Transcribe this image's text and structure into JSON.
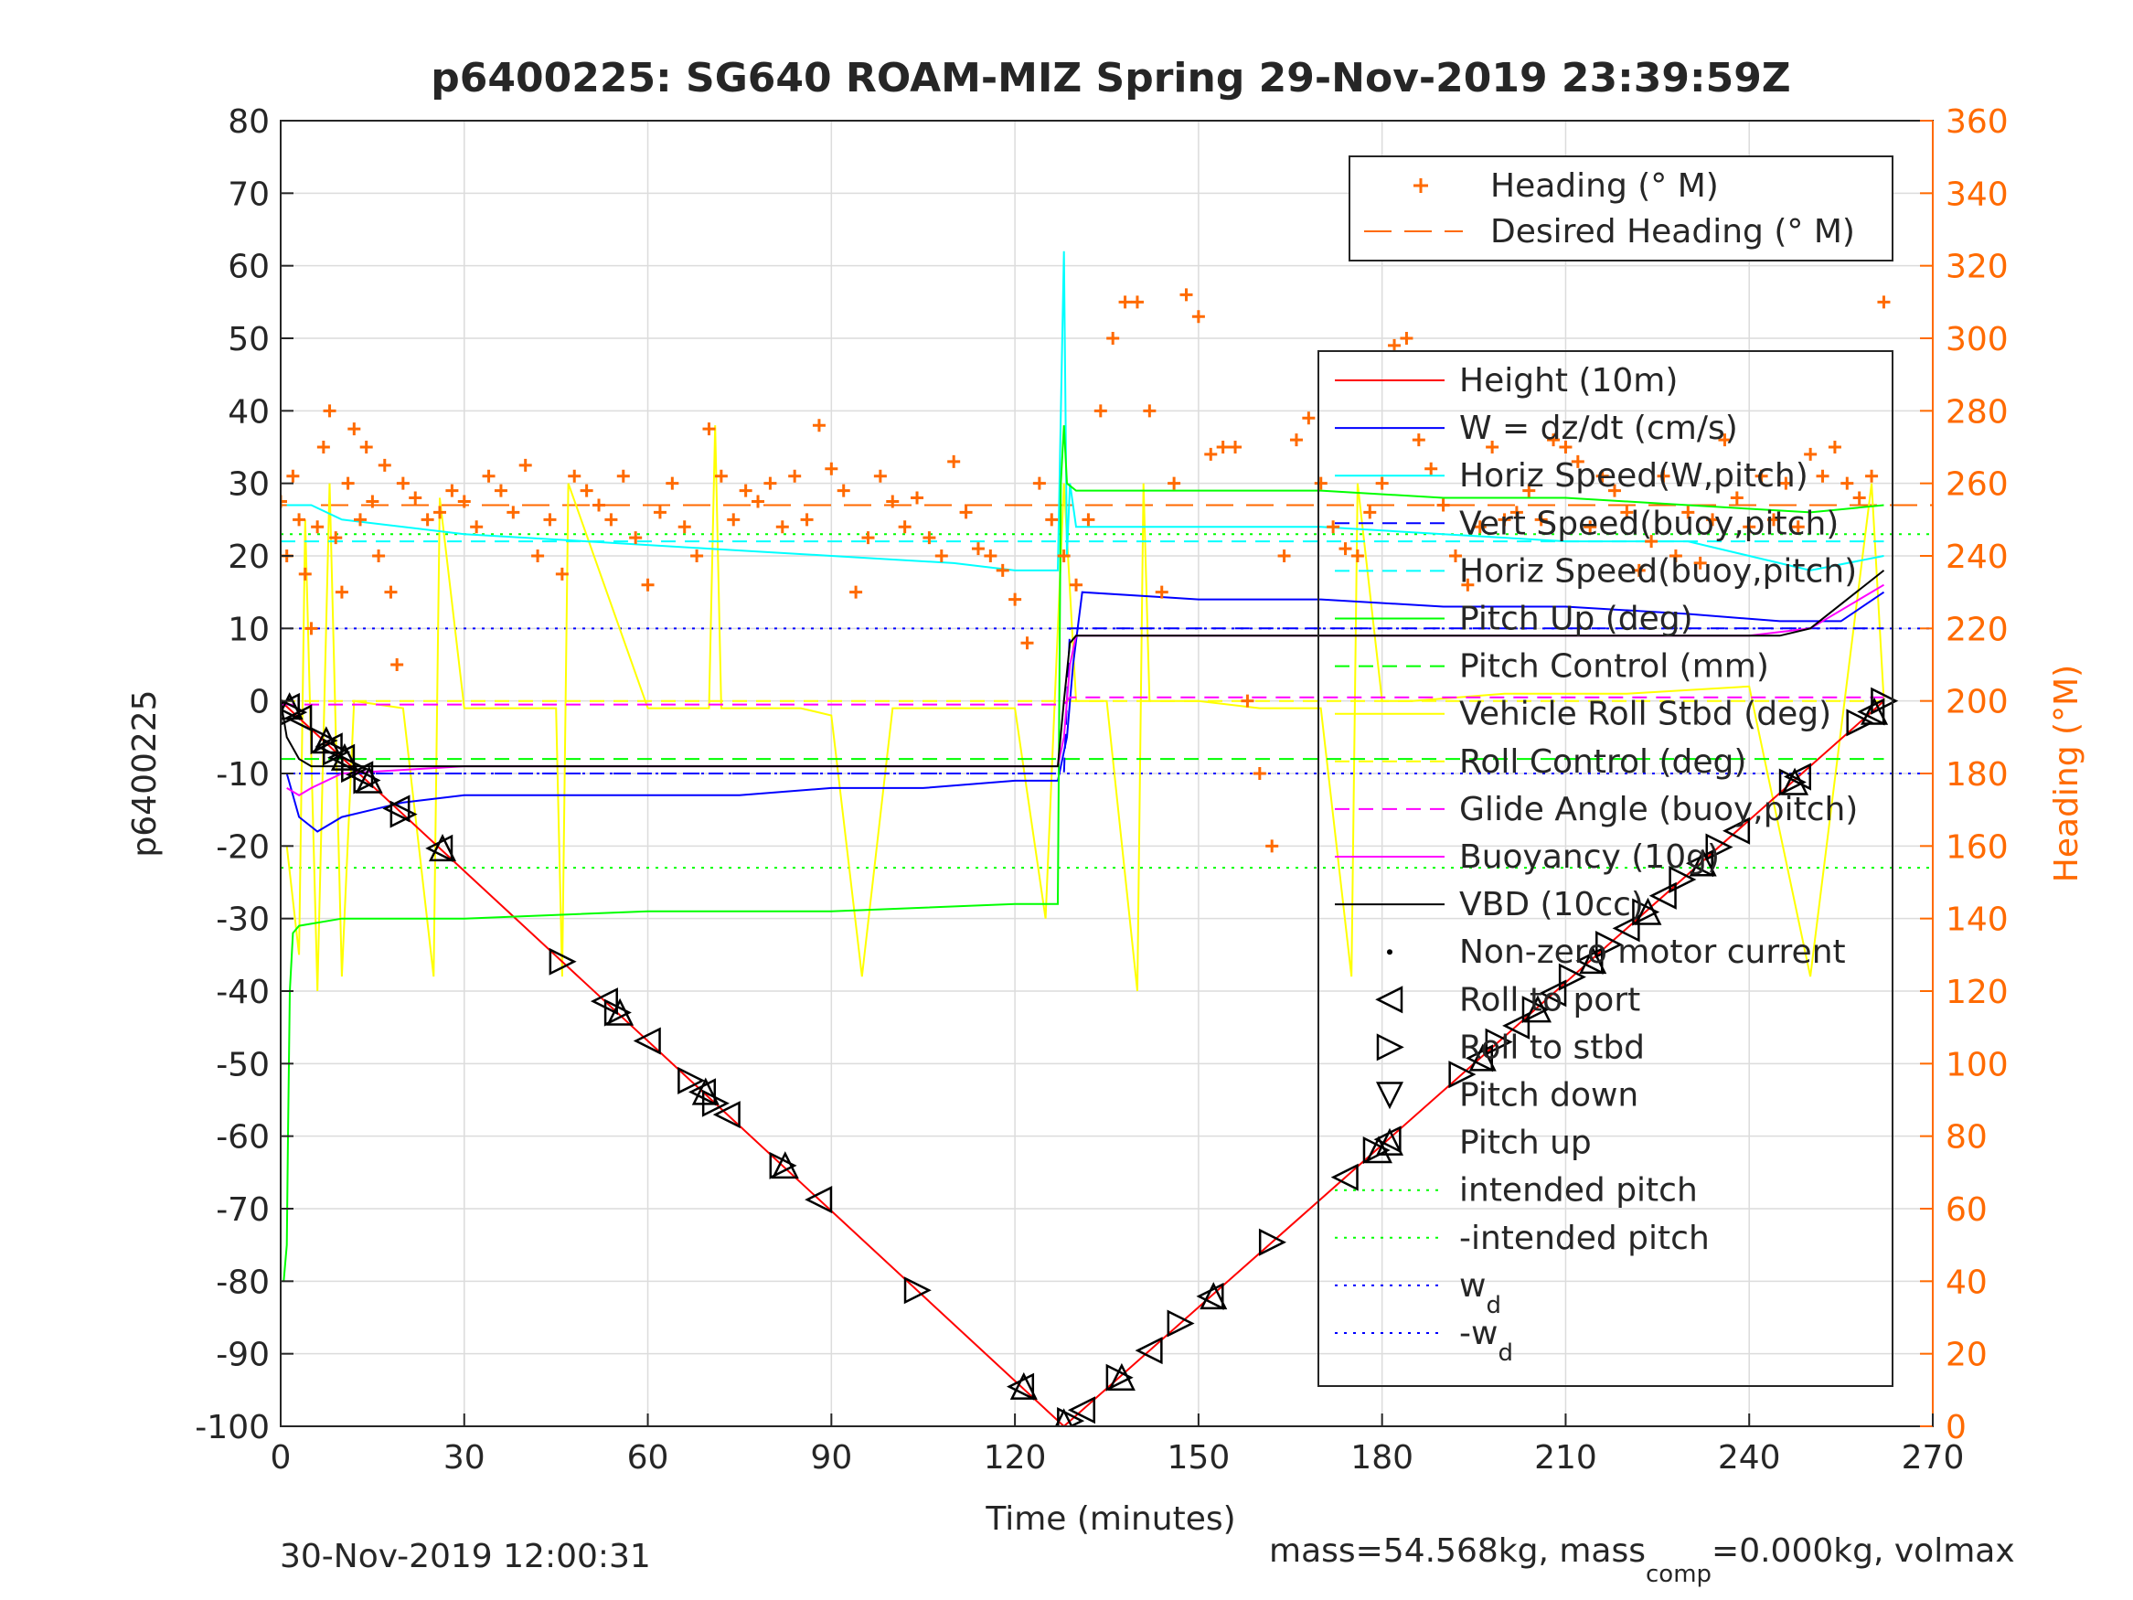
{
  "chart_data": {
    "type": "line",
    "title": "p6400225: SG640 ROAM-MIZ Spring 29-Nov-2019 23:39:59Z",
    "xlabel": "Time (minutes)",
    "ylabel": "p6400225",
    "ylabel_right": "Heading (°M)",
    "xlim": [
      0,
      270
    ],
    "ylim": [
      -100,
      80
    ],
    "ylim_right": [
      0,
      360
    ],
    "xticks": [
      "0",
      "30",
      "60",
      "90",
      "120",
      "150",
      "180",
      "210",
      "240",
      "270"
    ],
    "yticks": [
      "80",
      "70",
      "60",
      "50",
      "40",
      "30",
      "20",
      "10",
      "0",
      "-10",
      "-20",
      "-30",
      "-40",
      "-50",
      "-60",
      "-70",
      "-80",
      "-90",
      "-100"
    ],
    "yticks_right": [
      "360",
      "340",
      "320",
      "300",
      "280",
      "260",
      "240",
      "220",
      "200",
      "180",
      "160",
      "140",
      "120",
      "100",
      "80",
      "60",
      "40",
      "20",
      "0"
    ],
    "grid": true,
    "footer_left": "30-Nov-2019 12:00:31",
    "footer_right": {
      "a": "mass=54.568kg, mass",
      "sub": "comp",
      "b": "=0.000kg, volmax"
    },
    "legend_heading": [
      {
        "label": "Heading (° M)",
        "color": "#ff6a00",
        "style": "plus"
      },
      {
        "label": "Desired Heading (° M)",
        "color": "#ff6a00",
        "style": "dash"
      }
    ],
    "legend_main": [
      {
        "label": "Height (10m)",
        "color": "#ff0000",
        "style": "solid"
      },
      {
        "label": "W = dz/dt (cm/s)",
        "color": "#0000ff",
        "style": "solid"
      },
      {
        "label": "Horiz Speed(W,pitch)",
        "color": "#00ffff",
        "style": "solid"
      },
      {
        "label": "Vert Speed(buoy,pitch)",
        "color": "#0000ff",
        "style": "dash"
      },
      {
        "label": "Horiz Speed(buoy,pitch)",
        "color": "#00ffff",
        "style": "dash"
      },
      {
        "label": "Pitch Up (deg)",
        "color": "#00ff00",
        "style": "solid"
      },
      {
        "label": "Pitch Control (mm)",
        "color": "#00ff00",
        "style": "dash"
      },
      {
        "label": "Vehicle Roll Stbd (deg)",
        "color": "#ffff00",
        "style": "solid"
      },
      {
        "label": "Roll Control (deg)",
        "color": "#ffff00",
        "style": "dash"
      },
      {
        "label": "Glide Angle (buoy,pitch)",
        "color": "#ff00ff",
        "style": "dash"
      },
      {
        "label": "Buoyancy (10g)",
        "color": "#ff00ff",
        "style": "solid"
      },
      {
        "label": "VBD (10cc)",
        "color": "#000000",
        "style": "solid"
      },
      {
        "label": "Non-zero motor current",
        "color": "#000000",
        "style": "dot"
      },
      {
        "label": "Roll to port",
        "color": "#000000",
        "style": "tri-left"
      },
      {
        "label": "Roll to stbd",
        "color": "#000000",
        "style": "tri-right"
      },
      {
        "label": "Pitch down",
        "color": "#000000",
        "style": "tri-down"
      },
      {
        "label": "Pitch up",
        "color": "#000000",
        "style": "tri-up"
      },
      {
        "label": "intended pitch",
        "color": "#00ff00",
        "style": "dotted"
      },
      {
        "label": "-intended pitch",
        "color": "#00ff00",
        "style": "dotted"
      },
      {
        "label": "w",
        "sub": "d",
        "color": "#0000ff",
        "style": "dotted"
      },
      {
        "label": "-w",
        "sub": "d",
        "color": "#0000ff",
        "style": "dotted"
      }
    ],
    "series": [
      {
        "name": "Height (10m)",
        "color": "#ff0000",
        "x": [
          0,
          128,
          262
        ],
        "y": [
          0,
          -100,
          0
        ]
      },
      {
        "name": "W = dz/dt (cm/s)",
        "color": "#0000ff",
        "x": [
          1,
          3,
          6,
          10,
          20,
          30,
          45,
          60,
          75,
          90,
          105,
          120,
          127,
          128.5,
          129.5,
          131,
          150,
          170,
          190,
          210,
          230,
          245,
          255,
          262
        ],
        "y": [
          -10,
          -16,
          -18,
          -16,
          -14,
          -13,
          -13,
          -13,
          -13,
          -12,
          -12,
          -11,
          -11,
          -5,
          5,
          15,
          14,
          14,
          13,
          13,
          12,
          11,
          11,
          15
        ]
      },
      {
        "name": "Horiz Speed(W,pitch)",
        "color": "#00ffff",
        "x": [
          1,
          5,
          10,
          20,
          30,
          50,
          70,
          90,
          110,
          120,
          127,
          128,
          128.5,
          129,
          130,
          150,
          170,
          190,
          210,
          230,
          250,
          262
        ],
        "y": [
          27,
          27,
          25,
          24,
          23,
          22,
          21,
          20,
          19,
          18,
          18,
          62,
          20,
          30,
          24,
          24,
          24,
          23,
          22,
          22,
          18,
          20
        ]
      },
      {
        "name": "Vert Speed(buoy,pitch)",
        "color": "#0000ff",
        "dash": "16,10",
        "x": [
          0,
          128,
          129,
          262
        ],
        "y": [
          -10,
          -10,
          10,
          10
        ]
      },
      {
        "name": "Horiz Speed(buoy,pitch)",
        "color": "#00ffff",
        "dash": "16,10",
        "x": [
          0,
          128,
          129,
          262
        ],
        "y": [
          22,
          22,
          22,
          22
        ]
      },
      {
        "name": "Pitch Up (deg)",
        "color": "#00ff00",
        "x": [
          0.5,
          1,
          1.2,
          1.5,
          2,
          3,
          10,
          30,
          60,
          90,
          120,
          127,
          127.5,
          128,
          128.5,
          130,
          150,
          170,
          190,
          210,
          230,
          250,
          262
        ],
        "y": [
          -80,
          -75,
          -60,
          -40,
          -32,
          -31,
          -30,
          -30,
          -29,
          -29,
          -28,
          -28,
          30,
          38,
          30,
          29,
          29,
          29,
          28,
          28,
          27,
          26,
          27
        ]
      },
      {
        "name": "Pitch Control (mm)",
        "color": "#00ff00",
        "dash": "16,10",
        "x": [
          0,
          128,
          262
        ],
        "y": [
          -8,
          -8,
          -8
        ]
      },
      {
        "name": "Vehicle Roll Stbd (deg)",
        "color": "#ffff00",
        "x": [
          1,
          3,
          4,
          6,
          8,
          10,
          12,
          20,
          25,
          26,
          30,
          45,
          46,
          47,
          60,
          70,
          71,
          72,
          85,
          90,
          95,
          100,
          110,
          120,
          125,
          128,
          130,
          135,
          140,
          141,
          142,
          150,
          160,
          170,
          175,
          176,
          180,
          185,
          200,
          220,
          240,
          250,
          260,
          262
        ],
        "y": [
          -20,
          -35,
          25,
          -40,
          30,
          -38,
          0,
          -1,
          -38,
          28,
          -1,
          -1,
          -38,
          30,
          -1,
          -1,
          38,
          -1,
          -1,
          -2,
          -38,
          -1,
          -1,
          -1,
          -30,
          30,
          0,
          0,
          -40,
          30,
          0,
          0,
          -1,
          -1,
          -38,
          30,
          0,
          0,
          1,
          1,
          2,
          -38,
          30,
          0
        ]
      },
      {
        "name": "Roll Control (deg)",
        "color": "#ffff00",
        "dash": "16,10",
        "x": [
          0,
          128,
          262
        ],
        "y": [
          0,
          0,
          0
        ]
      },
      {
        "name": "Glide Angle (buoy,pitch)",
        "color": "#ff00ff",
        "dash": "16,10",
        "x": [
          0,
          128,
          129,
          262
        ],
        "y": [
          -0.5,
          -0.5,
          0.5,
          0.5
        ]
      },
      {
        "name": "Buoyancy (10g)",
        "color": "#ff00ff",
        "x": [
          1,
          3,
          5,
          10,
          30,
          60,
          90,
          120,
          127,
          128,
          129,
          130,
          150,
          180,
          210,
          240,
          250,
          262
        ],
        "y": [
          -12,
          -13,
          -12,
          -10,
          -9,
          -9,
          -9,
          -9,
          -9,
          -5,
          5,
          9,
          9,
          9,
          9,
          9,
          10,
          16
        ]
      },
      {
        "name": "VBD (10cc)",
        "color": "#000000",
        "x": [
          0,
          1,
          3,
          5,
          127,
          128,
          129,
          130,
          245,
          250,
          262
        ],
        "y": [
          0,
          -5,
          -8,
          -9,
          -9,
          0,
          8,
          9,
          9,
          10,
          18
        ]
      }
    ],
    "reference_lines": [
      {
        "name": "intended pitch",
        "y": 23,
        "color": "#00ff00"
      },
      {
        "name": "-intended pitch",
        "y": -23,
        "color": "#00ff00"
      },
      {
        "name": "w_d",
        "y": 10,
        "color": "#0000ff"
      },
      {
        "name": "-w_d",
        "y": -10,
        "color": "#0000ff"
      }
    ],
    "desired_heading": {
      "y_right": 254,
      "color": "#ff6a00"
    },
    "heading_points": {
      "color": "#ff6a00",
      "x": [
        0,
        1,
        2,
        3,
        4,
        5,
        6,
        7,
        8,
        9,
        10,
        11,
        12,
        13,
        14,
        15,
        16,
        17,
        18,
        19,
        20,
        22,
        24,
        26,
        28,
        30,
        32,
        34,
        36,
        38,
        40,
        42,
        44,
        46,
        48,
        50,
        52,
        54,
        56,
        58,
        60,
        62,
        64,
        66,
        68,
        70,
        72,
        74,
        76,
        78,
        80,
        82,
        84,
        86,
        88,
        90,
        92,
        94,
        96,
        98,
        100,
        102,
        104,
        106,
        108,
        110,
        112,
        114,
        116,
        118,
        120,
        122,
        124,
        126,
        128,
        130,
        132,
        134,
        136,
        138,
        140,
        142,
        144,
        146,
        148,
        150,
        152,
        154,
        156,
        158,
        160,
        162,
        164,
        166,
        168,
        170,
        172,
        174,
        176,
        178,
        180,
        182,
        184,
        186,
        188,
        190,
        192,
        194,
        196,
        198,
        200,
        202,
        204,
        206,
        208,
        210,
        212,
        214,
        216,
        218,
        220,
        222,
        224,
        226,
        228,
        230,
        232,
        234,
        236,
        238,
        240,
        242,
        244,
        246,
        248,
        250,
        252,
        254,
        256,
        258,
        260,
        262
      ],
      "y": [
        255,
        240,
        262,
        250,
        235,
        220,
        248,
        270,
        280,
        245,
        230,
        260,
        275,
        250,
        270,
        255,
        240,
        265,
        230,
        210,
        260,
        256,
        250,
        252,
        258,
        255,
        248,
        262,
        258,
        252,
        265,
        240,
        250,
        235,
        262,
        258,
        254,
        250,
        262,
        245,
        232,
        252,
        260,
        248,
        240,
        275,
        262,
        250,
        258,
        255,
        260,
        248,
        262,
        250,
        276,
        264,
        258,
        230,
        245,
        262,
        255,
        248,
        256,
        245,
        240,
        266,
        252,
        242,
        240,
        236,
        228,
        216,
        260,
        250,
        240,
        232,
        250,
        280,
        300,
        310,
        310,
        280,
        230,
        260,
        312,
        306,
        268,
        270,
        270,
        200,
        180,
        160,
        240,
        272,
        278,
        260,
        248,
        242,
        240,
        252,
        260,
        298,
        300,
        272,
        264,
        254,
        240,
        232,
        248,
        270,
        250,
        252,
        258,
        250,
        272,
        270,
        266,
        248,
        262,
        258,
        252,
        236,
        244,
        262,
        240,
        252,
        238,
        250,
        272,
        256,
        248,
        262,
        250,
        260,
        248,
        268,
        262,
        270,
        260,
        256,
        262,
        310
      ]
    }
  }
}
